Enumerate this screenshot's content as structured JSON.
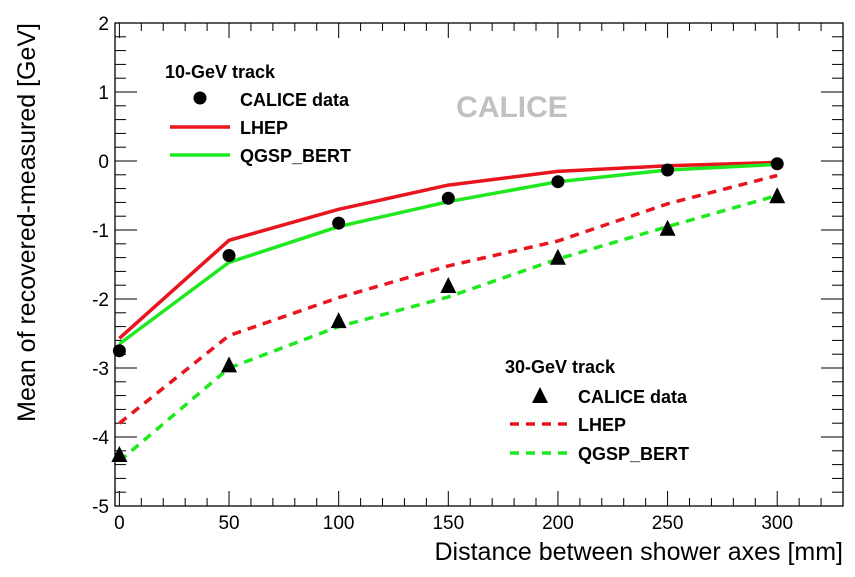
{
  "chart_data": {
    "type": "line",
    "xlabel": "Distance between shower axes [mm]",
    "ylabel": "Mean of recovered-measured [GeV]",
    "xlim": [
      -2,
      330
    ],
    "ylim": [
      -5,
      2
    ],
    "x_ticks": [
      0,
      50,
      100,
      150,
      200,
      250,
      300
    ],
    "y_ticks": [
      -5,
      -4,
      -3,
      -2,
      -1,
      0,
      1,
      2
    ],
    "watermark": "CALICE",
    "groups": [
      {
        "title": "10-GeV track",
        "series": [
          {
            "name": "CALICE data",
            "kind": "marker",
            "marker": "circle",
            "color": "#000000",
            "x": [
              0,
              50,
              100,
              150,
              200,
              250,
              300
            ],
            "y": [
              -2.75,
              -1.37,
              -0.9,
              -0.54,
              -0.3,
              -0.13,
              -0.04
            ]
          },
          {
            "name": "LHEP",
            "kind": "line",
            "dash": "solid",
            "color": "#e8141e",
            "x": [
              0,
              50,
              100,
              150,
              200,
              250,
              300
            ],
            "y": [
              -2.57,
              -1.15,
              -0.7,
              -0.35,
              -0.15,
              -0.07,
              -0.02
            ]
          },
          {
            "name": "QGSP_BERT",
            "kind": "line",
            "dash": "solid",
            "color": "#1ee81e",
            "x": [
              0,
              50,
              100,
              150,
              200,
              250,
              300
            ],
            "y": [
              -2.65,
              -1.47,
              -0.95,
              -0.59,
              -0.3,
              -0.13,
              -0.05
            ]
          }
        ]
      },
      {
        "title": "30-GeV track",
        "series": [
          {
            "name": "CALICE data",
            "kind": "marker",
            "marker": "triangle",
            "color": "#000000",
            "x": [
              0,
              50,
              100,
              150,
              200,
              250,
              300
            ],
            "y": [
              -4.27,
              -2.97,
              -2.33,
              -1.82,
              -1.41,
              -0.99,
              -0.52
            ]
          },
          {
            "name": "LHEP",
            "kind": "line",
            "dash": "dashed",
            "color": "#e8141e",
            "x": [
              0,
              50,
              100,
              150,
              200,
              250,
              300
            ],
            "y": [
              -3.8,
              -2.53,
              -1.98,
              -1.52,
              -1.16,
              -0.62,
              -0.21
            ]
          },
          {
            "name": "QGSP_BERT",
            "kind": "line",
            "dash": "dashed",
            "color": "#1ee81e",
            "x": [
              0,
              50,
              100,
              150,
              200,
              250,
              300
            ],
            "y": [
              -4.35,
              -3.0,
              -2.4,
              -1.97,
              -1.42,
              -0.95,
              -0.5
            ]
          }
        ]
      }
    ]
  }
}
